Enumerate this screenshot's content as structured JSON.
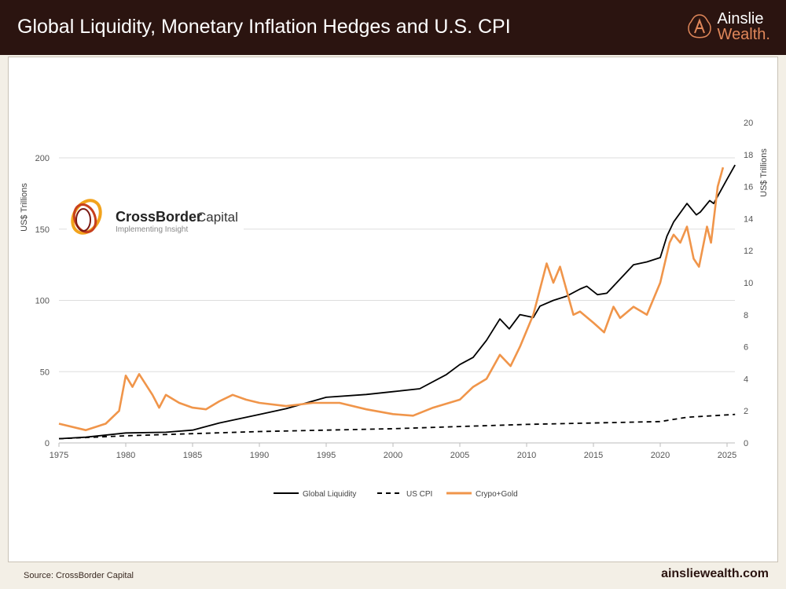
{
  "header": {
    "title": "Global Liquidity, Monetary Inflation Hedges and U.S. CPI",
    "brand_line1": "Ainslie",
    "brand_line2": "Wealth."
  },
  "footer": {
    "source": "Source: CrossBorder Capital",
    "url": "ainsliewealth.com"
  },
  "logo": {
    "name_bold": "CrossBorder",
    "name_light": "Capital",
    "tagline": "Implementing Insight"
  },
  "colors": {
    "header_bg": "#2b1410",
    "brand_accent": "#e0875a",
    "liquidity": "#000000",
    "cpi": "#000000",
    "crypto_gold": "#f0954a"
  },
  "chart_data": {
    "type": "line",
    "title": "",
    "xlabel": "",
    "ylabel": "US$ Trillions",
    "y2label": "US$ Trillions",
    "xlim": [
      1975,
      2026
    ],
    "ylim": [
      0,
      200
    ],
    "y2lim": [
      0,
      20
    ],
    "x_ticks": [
      "1975",
      "1980",
      "1985",
      "1990",
      "1995",
      "2000",
      "2005",
      "2010",
      "2015",
      "2020",
      "2025"
    ],
    "y_ticks": [
      "0",
      "50",
      "100",
      "150",
      "200"
    ],
    "y2_ticks": [
      "0",
      "2",
      "4",
      "6",
      "8",
      "10",
      "12",
      "14",
      "16",
      "18",
      "20"
    ],
    "grid": true,
    "legend": "bottom",
    "series": [
      {
        "name": "Global Liquidity",
        "axis": "left",
        "style": "solid",
        "x": [
          1975,
          1977,
          1980,
          1983,
          1985,
          1987,
          1990,
          1992,
          1995,
          1998,
          2000,
          2002,
          2004,
          2005,
          2006,
          2007,
          2008,
          2008.7,
          2009.5,
          2010.5,
          2011,
          2012,
          2013,
          2014,
          2014.5,
          2015.3,
          2016,
          2017,
          2018,
          2019,
          2020,
          2020.5,
          2021,
          2022,
          2022.7,
          2023,
          2023.7,
          2024,
          2025,
          2025.6
        ],
        "values": [
          3,
          4,
          7,
          7.5,
          9,
          14,
          20,
          24,
          32,
          34,
          36,
          38,
          48,
          55,
          60,
          72,
          87,
          80,
          90,
          88,
          96,
          100,
          103,
          108,
          110,
          104,
          105,
          115,
          125,
          127,
          130,
          145,
          155,
          168,
          160,
          162,
          170,
          168,
          185,
          195
        ]
      },
      {
        "name": "US CPI",
        "axis": "left",
        "style": "dashed",
        "x": [
          1975,
          1980,
          1985,
          1990,
          1995,
          2000,
          2005,
          2010,
          2015,
          2020,
          2022,
          2025.6
        ],
        "values": [
          3,
          5,
          6.5,
          8,
          9,
          10,
          11.5,
          13,
          14,
          15,
          18,
          20
        ]
      },
      {
        "name": "Crypo+Gold",
        "axis": "right",
        "style": "solid",
        "x": [
          1975,
          1977,
          1978.5,
          1979.5,
          1980,
          1980.5,
          1981,
          1982,
          1982.5,
          1983,
          1984,
          1985,
          1986,
          1987,
          1988,
          1989,
          1990,
          1992,
          1994,
          1996,
          1998,
          2000,
          2001.5,
          2003,
          2005,
          2006,
          2007,
          2008,
          2008.8,
          2009.5,
          2010.5,
          2011.5,
          2012,
          2012.5,
          2013,
          2013.5,
          2014,
          2015,
          2015.8,
          2016.5,
          2017,
          2018,
          2019,
          2020,
          2020.7,
          2021,
          2021.5,
          2022,
          2022.5,
          2022.9,
          2023.5,
          2023.8,
          2024.3,
          2024.7
        ],
        "values": [
          1.2,
          0.8,
          1.2,
          2,
          4.2,
          3.5,
          4.3,
          3,
          2.2,
          3,
          2.5,
          2.2,
          2.1,
          2.6,
          3,
          2.7,
          2.5,
          2.3,
          2.5,
          2.5,
          2.1,
          1.8,
          1.7,
          2.2,
          2.7,
          3.5,
          4,
          5.5,
          4.8,
          6,
          8,
          11.2,
          10,
          11,
          9.5,
          8,
          8.2,
          7.5,
          6.9,
          8.5,
          7.8,
          8.5,
          8,
          10,
          12.5,
          13,
          12.5,
          13.5,
          11.5,
          11,
          13.5,
          12.5,
          16,
          17.2
        ]
      }
    ]
  }
}
